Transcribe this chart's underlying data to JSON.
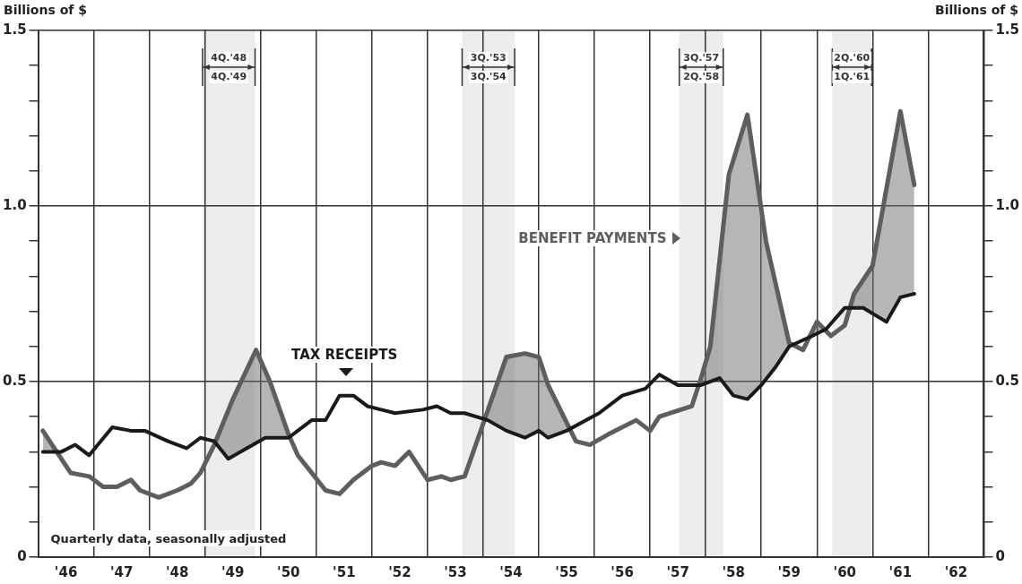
{
  "chart_data": {
    "type": "line",
    "ylabel": "Billions of $",
    "y2label": "Billions of $",
    "annotations": [
      "Quarterly data, seasonally adjusted"
    ],
    "series": [
      {
        "name": "TAX RECEIPTS",
        "color": "#1a1a1a",
        "x": [
          "1946-02",
          "1946-06",
          "1946-09",
          "1946-12",
          "1947-05",
          "1947-09",
          "1947-12",
          "1948-05",
          "1948-09",
          "1948-12",
          "1949-03",
          "1949-06",
          "1949-10",
          "1950-02",
          "1950-07",
          "1950-09",
          "1950-12",
          "1951-03",
          "1951-06",
          "1951-09",
          "1951-12",
          "1952-03",
          "1952-06",
          "1952-12",
          "1953-03",
          "1953-06",
          "1953-09",
          "1954-02",
          "1954-06",
          "1954-10",
          "1955-01",
          "1955-03",
          "1955-07",
          "1956-02",
          "1956-07",
          "1956-12",
          "1957-03",
          "1957-07",
          "1957-12",
          "1958-04",
          "1958-07",
          "1958-10",
          "1959-01",
          "1959-04",
          "1959-07",
          "1959-12",
          "1960-03",
          "1960-07",
          "1960-11",
          "1961-04",
          "1961-07",
          "1961-10"
        ],
        "values": [
          0.3,
          0.3,
          0.32,
          0.29,
          0.37,
          0.36,
          0.36,
          0.33,
          0.31,
          0.34,
          0.33,
          0.28,
          0.31,
          0.34,
          0.34,
          0.36,
          0.39,
          0.39,
          0.46,
          0.46,
          0.43,
          0.42,
          0.41,
          0.42,
          0.43,
          0.41,
          0.41,
          0.39,
          0.36,
          0.34,
          0.36,
          0.34,
          0.36,
          0.41,
          0.46,
          0.48,
          0.52,
          0.49,
          0.49,
          0.51,
          0.46,
          0.45,
          0.49,
          0.54,
          0.6,
          0.63,
          0.65,
          0.71,
          0.71,
          0.67,
          0.74,
          0.75
        ]
      },
      {
        "name": "BENEFIT PAYMENTS",
        "color": "#5e5e5e",
        "x": [
          "1946-02",
          "1946-08",
          "1946-12",
          "1947-03",
          "1947-06",
          "1947-09",
          "1947-11",
          "1948-03",
          "1948-07",
          "1948-10",
          "1948-12",
          "1949-03",
          "1949-07",
          "1949-12",
          "1950-03",
          "1950-07",
          "1950-09",
          "1950-12",
          "1951-03",
          "1951-06",
          "1951-09",
          "1952-01",
          "1952-03",
          "1952-06",
          "1952-09",
          "1953-01",
          "1953-04",
          "1953-06",
          "1953-09",
          "1954-01",
          "1954-06",
          "1954-10",
          "1955-01",
          "1955-03",
          "1955-09",
          "1955-12",
          "1956-04",
          "1956-10",
          "1957-01",
          "1957-03",
          "1957-10",
          "1957-12",
          "1958-02",
          "1958-06",
          "1958-10",
          "1959-02",
          "1959-07",
          "1959-10",
          "1960-01",
          "1960-04",
          "1960-07",
          "1960-09",
          "1961-01",
          "1961-07",
          "1961-10"
        ],
        "values": [
          0.36,
          0.24,
          0.23,
          0.2,
          0.2,
          0.22,
          0.19,
          0.17,
          0.19,
          0.21,
          0.24,
          0.32,
          0.45,
          0.59,
          0.5,
          0.35,
          0.29,
          0.24,
          0.19,
          0.18,
          0.22,
          0.26,
          0.27,
          0.26,
          0.3,
          0.22,
          0.23,
          0.22,
          0.23,
          0.38,
          0.57,
          0.58,
          0.57,
          0.49,
          0.33,
          0.32,
          0.35,
          0.39,
          0.36,
          0.4,
          0.43,
          0.51,
          0.6,
          1.09,
          1.26,
          0.9,
          0.61,
          0.59,
          0.67,
          0.63,
          0.66,
          0.75,
          0.83,
          1.27,
          1.06
        ]
      }
    ],
    "xlim": [
      "1946",
      "1963"
    ],
    "xticks": [
      {
        "value": "1946",
        "label": null
      },
      {
        "value": "1946-07",
        "label": "'46"
      },
      {
        "value": "1947",
        "label": null
      },
      {
        "value": "1947-07",
        "label": "'47"
      },
      {
        "value": "1948",
        "label": null
      },
      {
        "value": "1948-07",
        "label": "'48"
      },
      {
        "value": "1949",
        "label": null
      },
      {
        "value": "1949-07",
        "label": "'49"
      },
      {
        "value": "1950",
        "label": null
      },
      {
        "value": "1950-07",
        "label": "'50"
      },
      {
        "value": "1951",
        "label": null
      },
      {
        "value": "1951-07",
        "label": "'51"
      },
      {
        "value": "1952",
        "label": null
      },
      {
        "value": "1952-07",
        "label": "'52"
      },
      {
        "value": "1953",
        "label": null
      },
      {
        "value": "1953-07",
        "label": "'53"
      },
      {
        "value": "1954",
        "label": null
      },
      {
        "value": "1954-07",
        "label": "'54"
      },
      {
        "value": "1955",
        "label": null
      },
      {
        "value": "1955-07",
        "label": "'55"
      },
      {
        "value": "1956",
        "label": null
      },
      {
        "value": "1956-07",
        "label": "'56"
      },
      {
        "value": "1957",
        "label": null
      },
      {
        "value": "1957-07",
        "label": "'57"
      },
      {
        "value": "1958",
        "label": null
      },
      {
        "value": "1958-07",
        "label": "'58"
      },
      {
        "value": "1959",
        "label": null
      },
      {
        "value": "1959-07",
        "label": "'59"
      },
      {
        "value": "1960",
        "label": null
      },
      {
        "value": "1960-07",
        "label": "'60"
      },
      {
        "value": "1961",
        "label": null
      },
      {
        "value": "1961-07",
        "label": "'61"
      },
      {
        "value": "1962",
        "label": null
      },
      {
        "value": "1962-07",
        "label": "'62"
      },
      {
        "value": "1963",
        "label": null
      }
    ],
    "ylim": [
      0,
      1.5
    ],
    "yticks": [
      0,
      {
        "value": 0.1,
        "label": null
      },
      {
        "value": 0.2,
        "label": null
      },
      {
        "value": 0.3,
        "label": null
      },
      {
        "value": 0.4,
        "label": null
      },
      0.5,
      {
        "value": 0.6,
        "label": null
      },
      {
        "value": 0.7,
        "label": null
      },
      {
        "value": 0.8,
        "label": null
      },
      {
        "value": 0.9,
        "label": null
      },
      {
        "value": 1,
        "label": "1.0"
      },
      {
        "value": 1.1,
        "label": null
      },
      {
        "value": 1.2,
        "label": null
      },
      {
        "value": 1.3,
        "label": null
      },
      {
        "value": 1.4,
        "label": null
      },
      1.5
    ],
    "y2lim": [
      0,
      1.5
    ],
    "y2ticks": [
      0,
      {
        "value": 0.1,
        "label": null
      },
      {
        "value": 0.2,
        "label": null
      },
      {
        "value": 0.3,
        "label": null
      },
      {
        "value": 0.4,
        "label": null
      },
      0.5,
      {
        "value": 0.6,
        "label": null
      },
      {
        "value": 0.7,
        "label": null
      },
      {
        "value": 0.8,
        "label": null
      },
      {
        "value": 0.9,
        "label": null
      },
      {
        "value": 1,
        "label": "1.0"
      },
      {
        "value": 1.1,
        "label": null
      },
      {
        "value": 1.2,
        "label": null
      },
      {
        "value": 1.3,
        "label": null
      },
      {
        "value": 1.4,
        "label": null
      },
      1.5
    ],
    "bands": [
      {
        "axis": "x",
        "from": "1948-12-15",
        "to": "1949-11-25",
        "label": "4Q.'48\n4Q.'49",
        "color": "#ededed"
      },
      {
        "axis": "x",
        "from": "1953-08-15",
        "to": "1954-07-25",
        "label": "3Q.'53\n3Q.'54",
        "color": "#ededed"
      },
      {
        "axis": "x",
        "from": "1957-07-10",
        "to": "1958-04-25",
        "label": "3Q.'57\n2Q.'58",
        "color": "#ededed"
      },
      {
        "axis": "x",
        "from": "1960-04-10",
        "to": "1960-12-25",
        "label": "2Q.'60\n1Q.'61",
        "color": "#ededed"
      }
    ],
    "grid": true,
    "marker": "none",
    "line_style": "solid"
  }
}
